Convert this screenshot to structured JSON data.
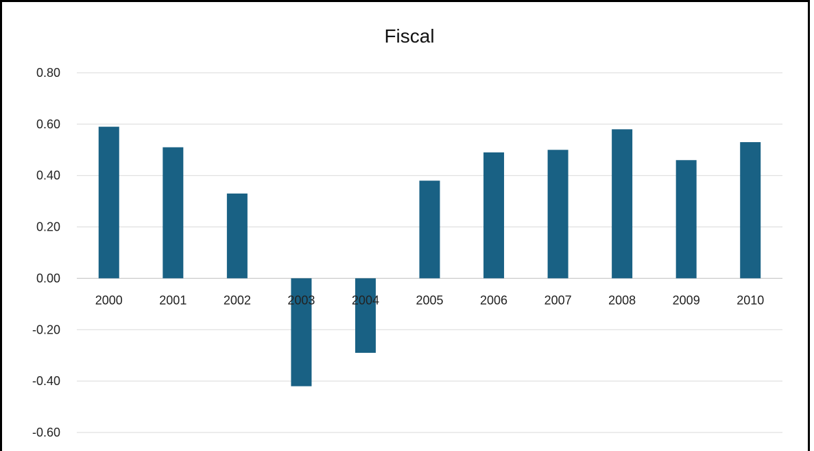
{
  "chart_data": {
    "type": "bar",
    "title": "Fiscal",
    "categories": [
      "2000",
      "2001",
      "2002",
      "2003",
      "2004",
      "2005",
      "2006",
      "2007",
      "2008",
      "2009",
      "2010"
    ],
    "series": [
      {
        "values": [
          0.59,
          0.51,
          0.33,
          -0.42,
          -0.29,
          0.38,
          0.49,
          0.5,
          0.58,
          0.46,
          0.53
        ]
      }
    ],
    "ylim": [
      -0.6,
      0.8
    ],
    "yticks": [
      "0.80",
      "0.60",
      "0.40",
      "0.20",
      "0.00",
      "-0.20",
      "-0.40",
      "-0.60"
    ],
    "xlabel": "",
    "ylabel": "",
    "grid": true,
    "legend": "none",
    "colors": {
      "bar": "#196184",
      "grid": "#d9d9d9",
      "frame": "#000000"
    }
  }
}
